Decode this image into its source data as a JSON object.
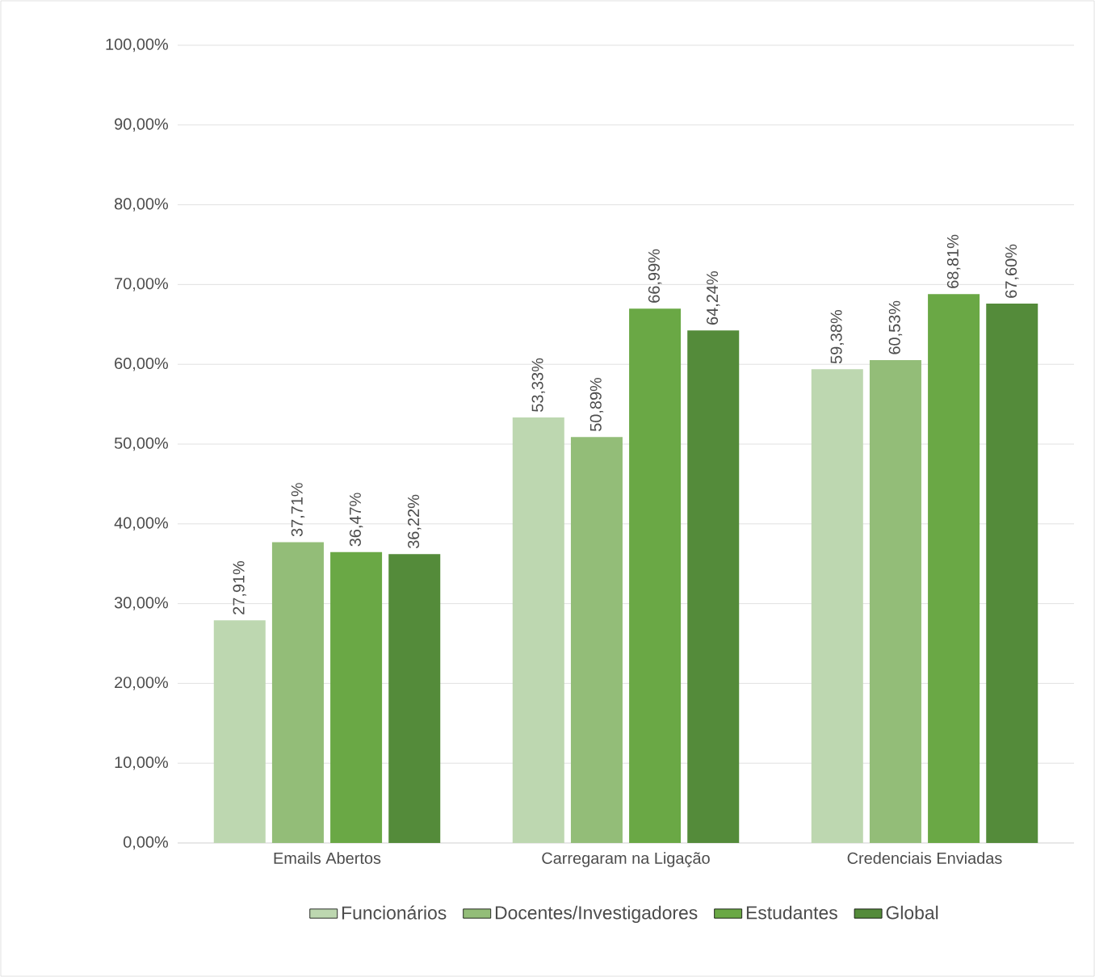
{
  "chart_data": {
    "type": "bar",
    "categories": [
      "Emails Abertos",
      "Carregaram na Ligação",
      "Credenciais Enviadas"
    ],
    "series": [
      {
        "name": "Funcionários",
        "color": "#bdd7b0",
        "values": [
          27.91,
          53.33,
          59.38
        ],
        "value_labels": [
          "27,91%",
          "53,33%",
          "59,38%"
        ]
      },
      {
        "name": "Docentes/Investigadores",
        "color": "#93bd78",
        "values": [
          37.71,
          50.89,
          60.53
        ],
        "value_labels": [
          "37,71%",
          "50,89%",
          "60,53%"
        ]
      },
      {
        "name": "Estudantes",
        "color": "#6aa845",
        "values": [
          36.47,
          66.99,
          68.81
        ],
        "value_labels": [
          "36,47%",
          "66,99%",
          "68,81%"
        ]
      },
      {
        "name": "Global",
        "color": "#548b3a",
        "values": [
          36.22,
          64.24,
          67.6
        ],
        "value_labels": [
          "36,22%",
          "64,24%",
          "67,60%"
        ]
      }
    ],
    "ylim": [
      0,
      100
    ],
    "yticks": [
      {
        "value": 0,
        "label": "0,00%"
      },
      {
        "value": 10,
        "label": "10,00%"
      },
      {
        "value": 20,
        "label": "20,00%"
      },
      {
        "value": 30,
        "label": "30,00%"
      },
      {
        "value": 40,
        "label": "40,00%"
      },
      {
        "value": 50,
        "label": "50,00%"
      },
      {
        "value": 60,
        "label": "60,00%"
      },
      {
        "value": 70,
        "label": "70,00%"
      },
      {
        "value": 80,
        "label": "80,00%"
      },
      {
        "value": 90,
        "label": "90,00%"
      },
      {
        "value": 100,
        "label": "100,00%"
      }
    ],
    "grid": "y",
    "legend": "bottom"
  }
}
